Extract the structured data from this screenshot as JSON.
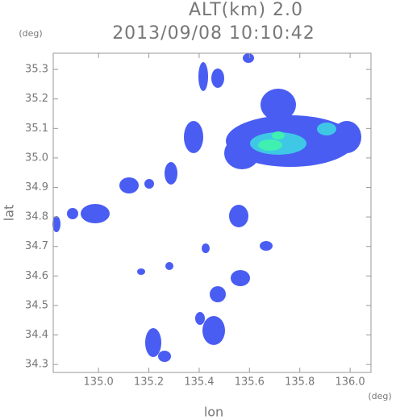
{
  "chart_data": {
    "type": "radar",
    "title": "2013/09/08 10:10:42",
    "subtitle": "ALT(km) 2.0",
    "x_label": "lon",
    "y_label": "lat",
    "x_unit": "(deg)",
    "y_unit": "(deg)",
    "xlim": [
      134.82,
      136.083
    ],
    "ylim": [
      34.273,
      35.355
    ],
    "xticks": [
      {
        "value": 135.0,
        "label": "135.0"
      },
      135.2,
      135.4,
      135.6,
      135.8,
      {
        "value": 136.0,
        "label": "136.0"
      }
    ],
    "yticks": [
      34.3,
      34.4,
      34.5,
      34.6,
      34.7,
      34.8,
      34.9,
      {
        "value": 35.0,
        "label": "35.0"
      },
      35.1,
      35.2,
      35.3
    ]
  }
}
